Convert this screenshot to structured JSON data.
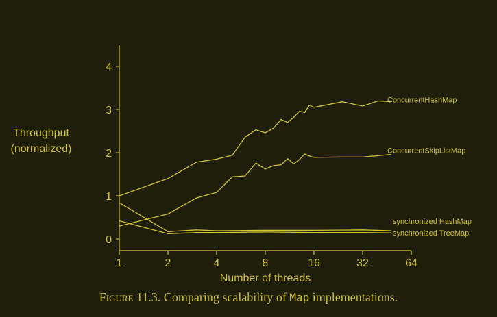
{
  "colors": {
    "background": "#1e1e0b",
    "foreground": "#d2c432"
  },
  "chart_data": {
    "type": "line",
    "xlabel": "Number of threads",
    "ylabel_line1": "Throughput",
    "ylabel_line2": "(normalized)",
    "x_scale": "log2",
    "xlim": [
      1,
      64
    ],
    "ylim": [
      0,
      4
    ],
    "x_ticks": [
      1,
      2,
      4,
      8,
      16,
      32,
      64
    ],
    "x_tick_labels": [
      "1",
      "2",
      "4",
      "8",
      "16",
      "32",
      "64"
    ],
    "y_ticks": [
      0,
      1,
      2,
      3,
      4
    ],
    "y_tick_labels": [
      "0",
      "1",
      "2",
      "3",
      "4"
    ],
    "grid": false,
    "series": [
      {
        "name": "ConcurrentHashMap",
        "x": [
          1,
          2,
          3,
          4,
          5,
          6,
          7,
          8,
          9,
          10,
          11,
          12,
          13,
          14,
          15,
          16,
          24,
          32,
          40,
          48
        ],
        "y": [
          1.0,
          1.4,
          1.78,
          1.85,
          1.94,
          2.36,
          2.53,
          2.46,
          2.57,
          2.77,
          2.7,
          2.82,
          2.96,
          2.93,
          3.1,
          3.05,
          3.18,
          3.08,
          3.2,
          3.18
        ]
      },
      {
        "name": "ConcurrentSkipListMap",
        "x": [
          1,
          2,
          3,
          4,
          5,
          6,
          7,
          8,
          9,
          10,
          11,
          12,
          13,
          14,
          15,
          16,
          24,
          32,
          40,
          48
        ],
        "y": [
          0.3,
          0.58,
          0.95,
          1.08,
          1.44,
          1.46,
          1.76,
          1.62,
          1.7,
          1.72,
          1.86,
          1.74,
          1.84,
          1.97,
          1.92,
          1.89,
          1.9,
          1.9,
          1.93,
          1.96
        ]
      },
      {
        "name": "synchronized HashMap",
        "x": [
          1,
          2,
          3,
          4,
          8,
          16,
          32,
          48
        ],
        "y": [
          0.84,
          0.17,
          0.21,
          0.19,
          0.2,
          0.2,
          0.21,
          0.19
        ]
      },
      {
        "name": "synchronized TreeMap",
        "x": [
          1,
          2,
          3,
          4,
          8,
          16,
          32,
          48
        ],
        "y": [
          0.42,
          0.12,
          0.15,
          0.15,
          0.16,
          0.15,
          0.15,
          0.14
        ]
      }
    ]
  },
  "caption": {
    "figure_label": "Figure 11.3.",
    "text_before": "Comparing scalability of",
    "code": "Map",
    "text_after": "implementations."
  }
}
